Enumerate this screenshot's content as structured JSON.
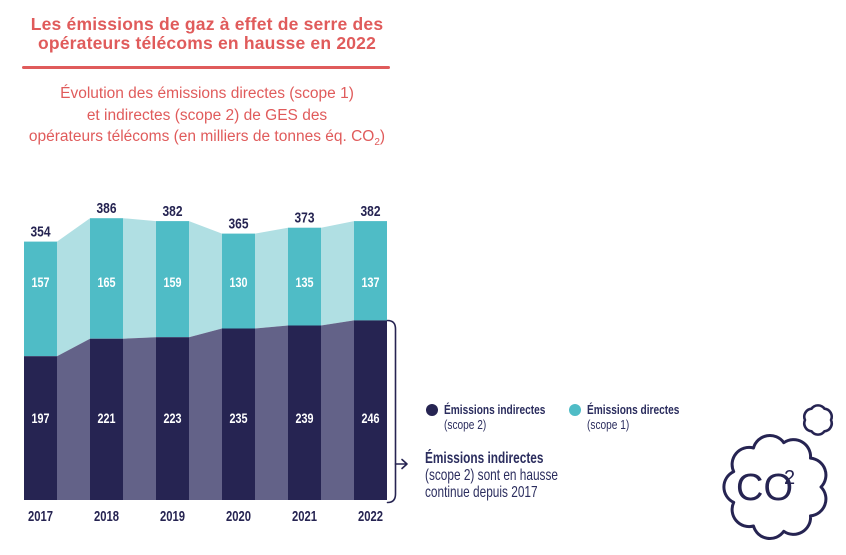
{
  "title": {
    "line1": "Les émissions de gaz à effet de serre des",
    "line2": "opérateurs télécoms en hausse en 2022"
  },
  "subtitle": {
    "line1": "Évolution des émissions directes (scope 1)",
    "line2": "et indirectes (scope 2) de GES des",
    "line3_prefix": "opérateurs télécoms (en milliers de tonnes éq. CO",
    "line3_sub": "2",
    "line3_suffix": ")"
  },
  "chart_data": {
    "type": "bar",
    "subtype": "stacked-bars-with-connecting-areas",
    "unit": "milliers de tonnes éq. CO2",
    "categories": [
      "2017",
      "2018",
      "2019",
      "2020",
      "2021",
      "2022"
    ],
    "series": [
      {
        "name": "Émissions indirectes (scope 2)",
        "values": [
          197,
          221,
          223,
          235,
          239,
          246
        ],
        "color": "#262452",
        "between_color": "#636288",
        "label_color": "#ffffff"
      },
      {
        "name": "Émissions directes (scope 1)",
        "values": [
          157,
          165,
          159,
          130,
          135,
          137
        ],
        "color": "#4fbcc6",
        "between_color": "#b0dfe3",
        "label_color": "#ffffff"
      }
    ],
    "totals": [
      354,
      386,
      382,
      365,
      373,
      382
    ],
    "ylim": [
      0,
      400
    ],
    "grid": false,
    "axis_lines": false,
    "legend_position": "right-of-chart"
  },
  "legend": {
    "items": [
      {
        "line1": "Émissions indirectes",
        "line2": "(scope 2)",
        "color": "#262452"
      },
      {
        "line1": "Émissions directes",
        "line2": "(scope 1)",
        "color": "#4fbcc6"
      }
    ]
  },
  "annotation": {
    "line1": "Émissions indirectes",
    "line2": "(scope 2) sont en hausse",
    "line3": "continue depuis 2017"
  },
  "cloud": {
    "text": "CO",
    "sup": "2"
  },
  "colors": {
    "accent_red": "#e05b5b",
    "navy": "#262452",
    "navy_light": "#636288",
    "teal": "#4fbcc6",
    "teal_light": "#b0dfe3",
    "text_navy": "#2b2d5e",
    "background": "#ffffff"
  }
}
